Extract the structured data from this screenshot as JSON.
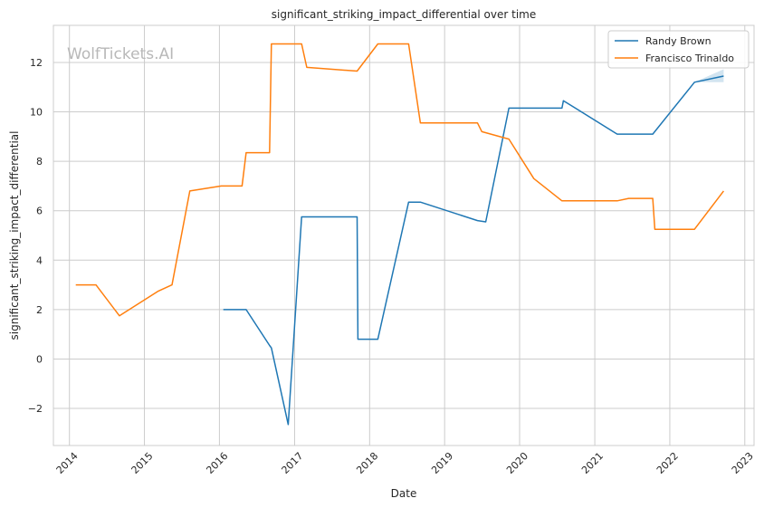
{
  "chart_data": {
    "type": "line",
    "title": "significant_striking_impact_differential over time",
    "xlabel": "Date",
    "ylabel": "significant_striking_impact_differential",
    "watermark": "WolfTickets.AI",
    "xlim": [
      "2013-10-15",
      "2023-02-15"
    ],
    "ylim": [
      -3.5,
      13.5
    ],
    "x_ticks": [
      "2014",
      "2015",
      "2016",
      "2017",
      "2018",
      "2019",
      "2020",
      "2021",
      "2022",
      "2023"
    ],
    "y_ticks": [
      -2,
      0,
      2,
      4,
      6,
      8,
      10,
      12
    ],
    "grid": true,
    "legend_position": "top-right",
    "series": [
      {
        "name": "Randy Brown",
        "color": "#1f77b4",
        "x": [
          "2016-01-20",
          "2016-05-10",
          "2016-09-01",
          "2016-09-10",
          "2016-12-01",
          "2017-02-04",
          "2017-11-01",
          "2017-11-05",
          "2018-02-10",
          "2018-07-10",
          "2018-09-05",
          "2019-06-10",
          "2019-07-20",
          "2019-11-10",
          "2020-07-25",
          "2020-08-01",
          "2021-04-20",
          "2021-10-10",
          "2022-05-01",
          "2022-09-20"
        ],
        "y": [
          2.0,
          2.0,
          0.55,
          0.45,
          -2.65,
          5.75,
          5.75,
          0.8,
          0.8,
          6.35,
          6.35,
          5.6,
          5.55,
          10.15,
          10.15,
          10.45,
          9.1,
          9.1,
          11.2,
          11.45
        ]
      },
      {
        "name": "Francisco Trinaldo",
        "color": "#ff7f0e",
        "x": [
          "2014-02-01",
          "2014-05-10",
          "2014-09-01",
          "2015-03-10",
          "2015-05-15",
          "2015-08-10",
          "2016-01-10",
          "2016-04-20",
          "2016-05-10",
          "2016-09-01",
          "2016-09-10",
          "2017-02-04",
          "2017-03-01",
          "2017-11-01",
          "2018-02-10",
          "2018-07-10",
          "2018-09-05",
          "2019-06-10",
          "2019-07-01",
          "2019-11-10",
          "2020-03-10",
          "2020-07-25",
          "2021-04-20",
          "2021-06-15",
          "2021-10-10",
          "2021-10-20",
          "2022-05-01",
          "2022-09-20"
        ],
        "y": [
          3.0,
          3.0,
          1.75,
          2.75,
          3.0,
          6.8,
          7.0,
          7.0,
          8.35,
          8.35,
          12.75,
          12.75,
          11.8,
          11.65,
          12.75,
          12.75,
          9.55,
          9.55,
          9.2,
          8.9,
          7.3,
          6.4,
          6.4,
          6.5,
          6.5,
          5.25,
          5.25,
          6.8
        ]
      }
    ]
  }
}
